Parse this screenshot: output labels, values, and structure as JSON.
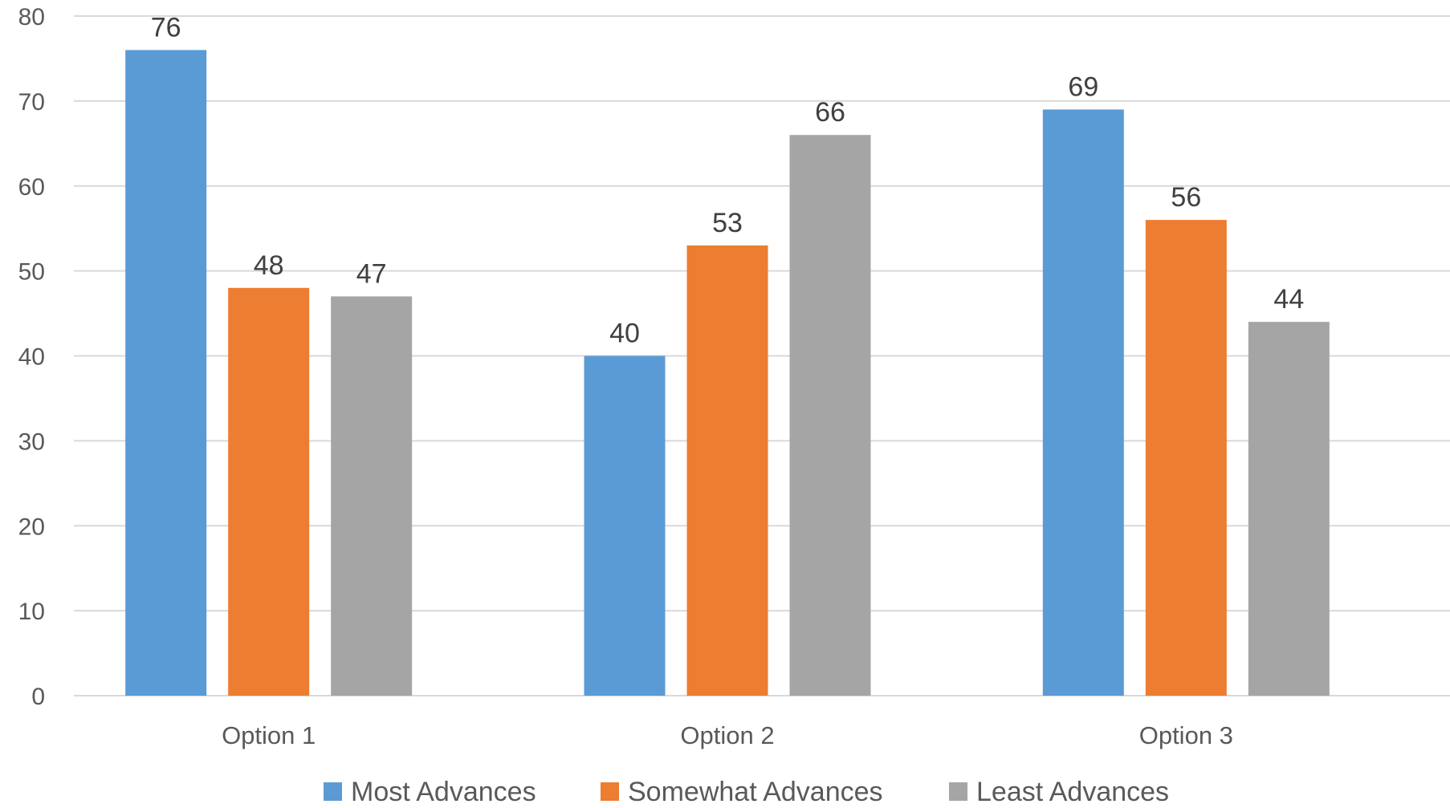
{
  "chart_data": {
    "type": "bar",
    "title": "",
    "xlabel": "",
    "ylabel": "",
    "categories": [
      "Option 1",
      "Option 2",
      "Option 3"
    ],
    "series": [
      {
        "name": "Most Advances",
        "color": "#5b9bd5",
        "values": [
          76,
          40,
          69
        ]
      },
      {
        "name": "Somewhat Advances",
        "color": "#ed7d31",
        "values": [
          48,
          53,
          56
        ]
      },
      {
        "name": "Least Advances",
        "color": "#a5a5a5",
        "values": [
          47,
          66,
          44
        ]
      }
    ],
    "ylim": [
      0,
      80
    ],
    "yticks": [
      0,
      10,
      20,
      30,
      40,
      50,
      60,
      70,
      80
    ],
    "grid": true,
    "legend_position": "bottom",
    "data_labels": true
  }
}
